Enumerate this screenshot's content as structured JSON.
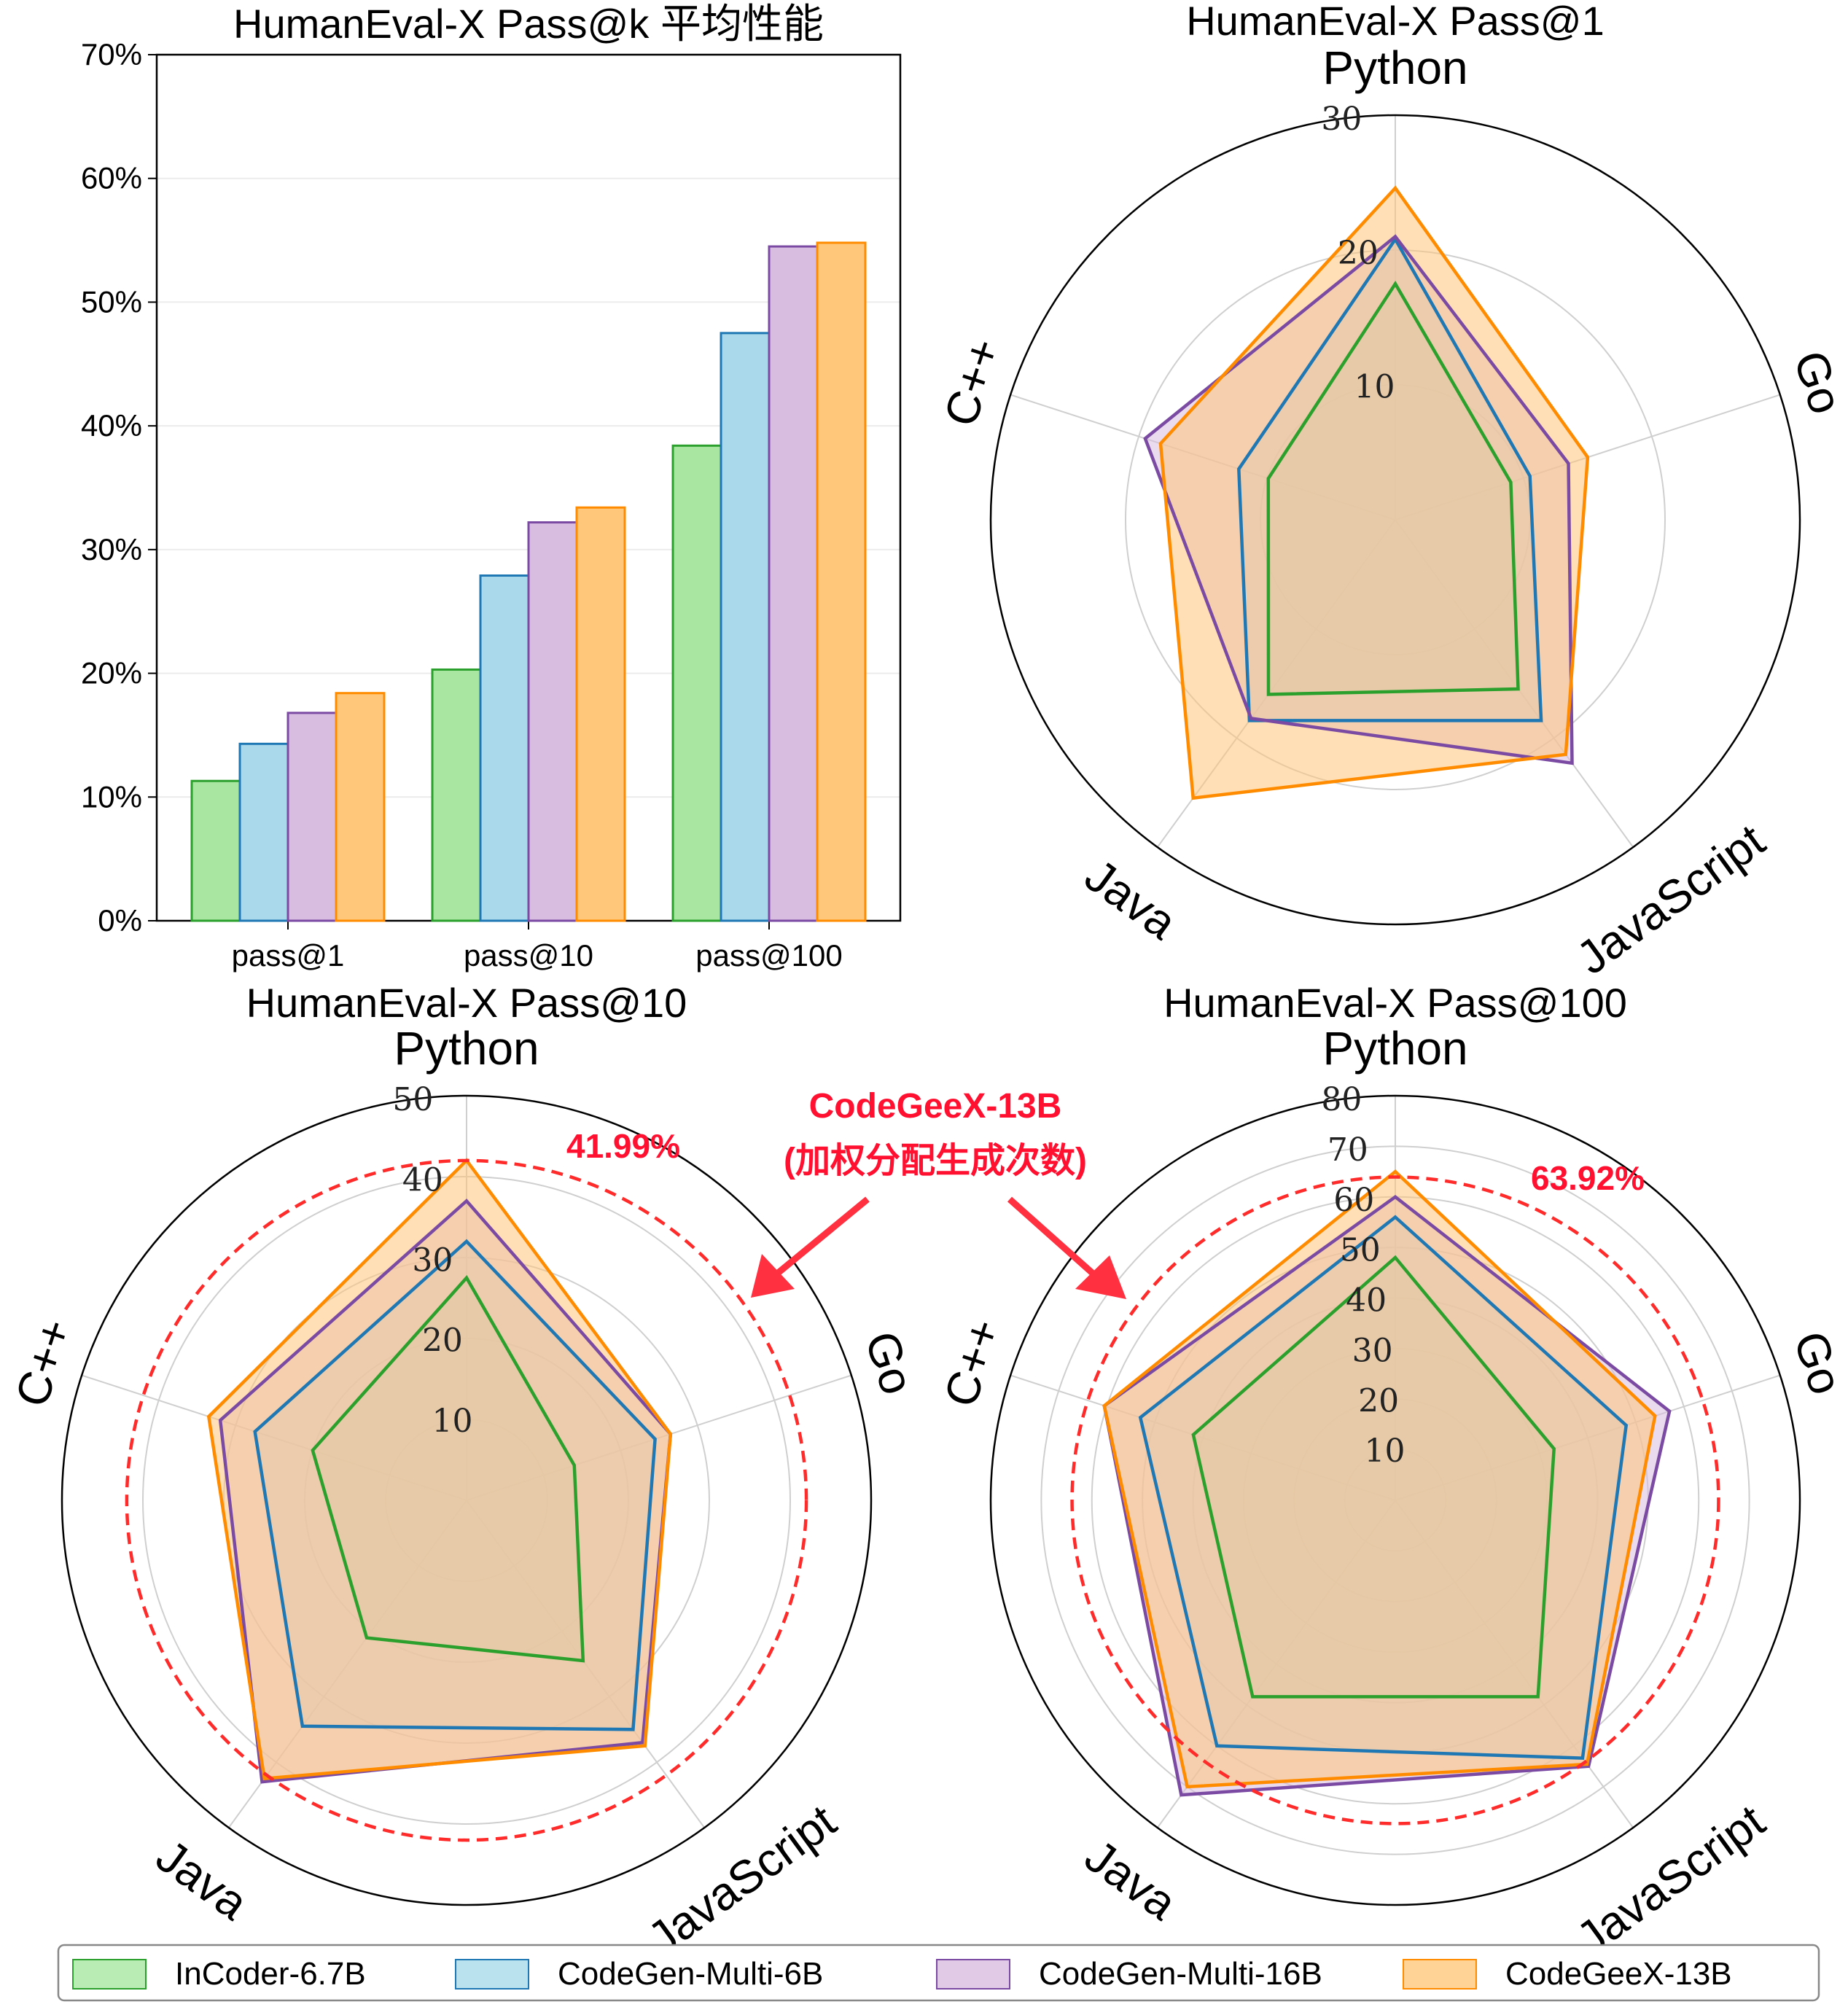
{
  "legend": [
    {
      "name": "InCoder-6.7B",
      "fill": "#a8e6a1",
      "stroke": "#2ca02c"
    },
    {
      "name": "CodeGen-Multi-6B",
      "fill": "#a9d9ea",
      "stroke": "#1f77b4"
    },
    {
      "name": "CodeGen-Multi-16B",
      "fill": "#d9bde0",
      "stroke": "#7b4ba3"
    },
    {
      "name": "CodeGeeX-13B",
      "fill": "#ffc77a",
      "stroke": "#ff8c00"
    }
  ],
  "chart_data": [
    {
      "type": "bar",
      "title": "HumanEval-X Pass@k 平均性能",
      "categories": [
        "pass@1",
        "pass@10",
        "pass@100"
      ],
      "ylim": [
        0,
        70
      ],
      "yticks": [
        "0%",
        "10%",
        "20%",
        "30%",
        "40%",
        "50%",
        "60%",
        "70%"
      ],
      "grid": true,
      "series": [
        {
          "name": "InCoder-6.7B",
          "values": [
            11.3,
            20.3,
            38.4
          ]
        },
        {
          "name": "CodeGen-Multi-6B",
          "values": [
            14.3,
            27.9,
            47.5
          ]
        },
        {
          "name": "CodeGen-Multi-16B",
          "values": [
            16.8,
            32.2,
            54.5
          ]
        },
        {
          "name": "CodeGeeX-13B",
          "values": [
            18.4,
            33.4,
            54.8
          ]
        }
      ]
    },
    {
      "type": "radar",
      "title": "HumanEval-X Pass@1",
      "axes": [
        "Python",
        "Go",
        "JavaScript",
        "Java",
        "C++"
      ],
      "rmax": 30,
      "rticks": [
        10,
        20,
        30
      ],
      "series": [
        {
          "name": "InCoder-6.7B",
          "values": [
            17.5,
            9.0,
            15.5,
            16.0,
            9.9
          ]
        },
        {
          "name": "CodeGen-Multi-6B",
          "values": [
            20.8,
            10.5,
            18.4,
            18.4,
            12.2
          ]
        },
        {
          "name": "CodeGen-Multi-16B",
          "values": [
            21.0,
            13.5,
            22.3,
            18.2,
            19.5
          ]
        },
        {
          "name": "CodeGeeX-13B",
          "values": [
            24.6,
            15.0,
            21.5,
            25.5,
            18.3
          ]
        }
      ]
    },
    {
      "type": "radar",
      "title": "HumanEval-X Pass@10",
      "axes": [
        "Python",
        "Go",
        "JavaScript",
        "Java",
        "C++"
      ],
      "rmax": 50,
      "rticks": [
        10,
        20,
        30,
        40,
        50
      ],
      "dashed_ring": {
        "value": 41.99,
        "label": "41.99%"
      },
      "series": [
        {
          "name": "InCoder-6.7B",
          "values": [
            27.5,
            14.0,
            24.5,
            21.0,
            20.0
          ]
        },
        {
          "name": "CodeGen-Multi-6B",
          "values": [
            32.0,
            24.5,
            35.0,
            34.5,
            27.5
          ]
        },
        {
          "name": "CodeGen-Multi-16B",
          "values": [
            37.0,
            26.5,
            37.0,
            43.0,
            32.0
          ]
        },
        {
          "name": "CodeGeeX-13B",
          "values": [
            42.0,
            26.5,
            37.5,
            42.5,
            33.5
          ]
        }
      ]
    },
    {
      "type": "radar",
      "title": "HumanEval-X Pass@100",
      "axes": [
        "Python",
        "Go",
        "JavaScript",
        "Java",
        "C++"
      ],
      "rmax": 80,
      "rticks": [
        10,
        20,
        30,
        40,
        50,
        60,
        70,
        80
      ],
      "dashed_ring": {
        "value": 63.92,
        "label": "63.92%"
      },
      "series": [
        {
          "name": "InCoder-6.7B",
          "values": [
            48.0,
            33.0,
            48.0,
            48.0,
            42.0
          ]
        },
        {
          "name": "CodeGen-Multi-6B",
          "values": [
            56.0,
            48.0,
            63.0,
            60.0,
            53.0
          ]
        },
        {
          "name": "CodeGen-Multi-16B",
          "values": [
            60.0,
            57.0,
            65.0,
            72.0,
            60.5
          ]
        },
        {
          "name": "CodeGeeX-13B",
          "values": [
            65.0,
            54.0,
            64.5,
            70.0,
            60.5
          ]
        }
      ]
    }
  ],
  "annotation": {
    "line1": "CodeGeeX-13B",
    "line2": "(加权分配生成次数)"
  }
}
